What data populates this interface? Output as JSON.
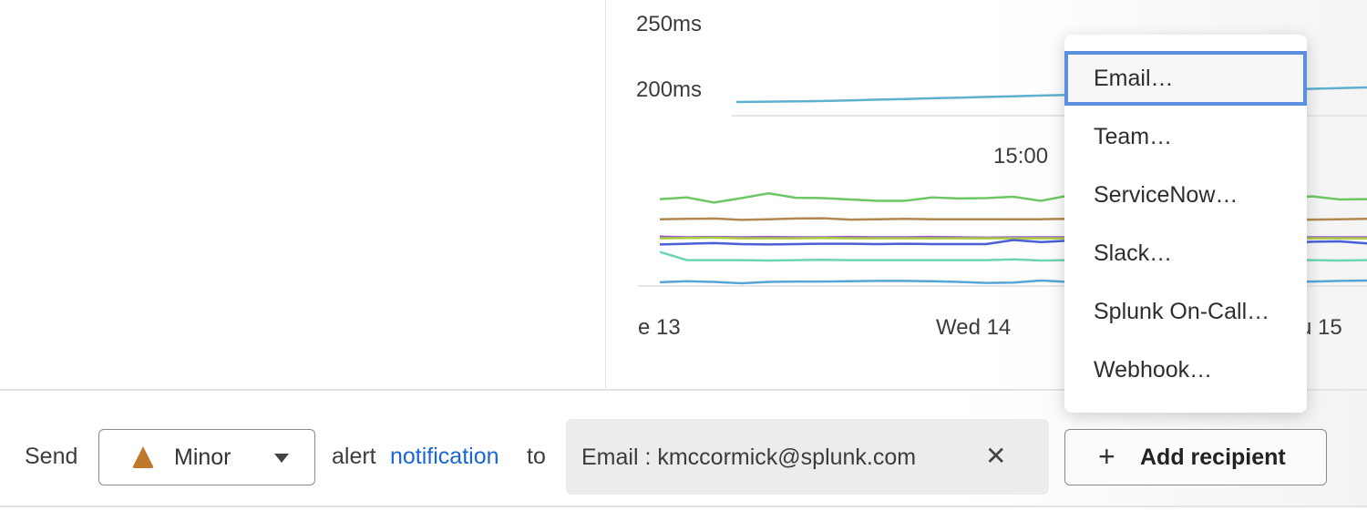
{
  "chart_data": {
    "type": "line",
    "y_tick_labels": [
      "250ms",
      "200ms"
    ],
    "x_tick_labels": [
      "e 13",
      "Wed 14",
      "u 15"
    ],
    "annotation": "15:00",
    "ylim": [
      150,
      250
    ],
    "grid": true,
    "series": [
      {
        "color": "#5eb0d0",
        "values": [
          null,
          null,
          null,
          null,
          204,
          204.2,
          204.3,
          204.5,
          204.7,
          204.9,
          205.1,
          205.3,
          205.5,
          205.7,
          205.9,
          206.1,
          206.3,
          206.5,
          206.7,
          206.9,
          207.1,
          207.3,
          207.5,
          207.7,
          207.9,
          208.1,
          208.3
        ]
      },
      {
        "color": "#6cc764",
        "values": [
          175.5,
          176,
          174.5,
          175.8,
          177.2,
          175.9,
          175.8,
          175.4,
          175,
          175,
          176,
          175.7,
          175.8,
          176.2,
          175,
          176.5,
          176,
          175,
          175.6,
          175.8,
          175.5,
          175,
          175.7,
          176.1,
          176.3,
          175.4,
          175.5
        ]
      },
      {
        "color": "#b08850",
        "values": [
          169.6,
          169.7,
          169.8,
          169.4,
          169.6,
          169.8,
          169.9,
          169.5,
          169.6,
          169.7,
          169.6,
          169.6,
          169.6,
          169.6,
          169.6,
          169.7,
          169.6,
          169.6,
          169.6,
          169.5,
          169.6,
          169.6,
          169.5,
          169.4,
          169.5,
          169.6,
          169.7
        ]
      },
      {
        "color": "#9b59d6",
        "values": [
          164.5,
          164.3,
          164.4,
          164.3,
          164.4,
          164.3,
          164.3,
          164.4,
          164.3,
          164.3,
          164.4,
          164.3,
          164.2,
          164.3,
          164.3,
          164.3,
          164.3,
          164.3,
          164.3,
          164.3,
          164.3,
          164.3,
          164.3,
          164.3,
          164.3,
          164.3,
          164.3
        ]
      },
      {
        "color": "#a9cc3c",
        "values": [
          164,
          164.1,
          164.2,
          164,
          164,
          164,
          164.1,
          164,
          164,
          164,
          164,
          164,
          164,
          164,
          164,
          164,
          164,
          164,
          164,
          164,
          164,
          164,
          164,
          164,
          164,
          164,
          164
        ]
      },
      {
        "color": "#4a5fd6",
        "values": [
          162.2,
          162.4,
          162.6,
          162.3,
          162.2,
          162.3,
          162.4,
          162.4,
          162.3,
          162.4,
          162.3,
          162.3,
          162.3,
          163.5,
          162.9,
          163.3,
          163.1,
          162.8,
          163,
          162.9,
          163,
          163.2,
          162.9,
          162.6,
          163,
          163.1,
          162.5
        ]
      },
      {
        "color": "#6fd3b8",
        "values": [
          160,
          157.6,
          157.6,
          157.6,
          157.5,
          157.6,
          157.7,
          157.6,
          157.6,
          157.6,
          157.6,
          157.6,
          157.6,
          157.8,
          157.5,
          157.6,
          157.6,
          157.6,
          157.6,
          157.6,
          157.6,
          157.5,
          157.4,
          157.6,
          157.6,
          157.5,
          157.6
        ]
      },
      {
        "color": "#55a6d8",
        "values": [
          151.1,
          151.4,
          151.2,
          150.8,
          151.2,
          151.3,
          151.3,
          151.4,
          151.5,
          151.5,
          151.4,
          151.2,
          150.9,
          151,
          151.6,
          151.2,
          151.2,
          151,
          151.3,
          151.2,
          151.1,
          151.2,
          151,
          151.2,
          151.3,
          151.5,
          151.6
        ]
      }
    ]
  },
  "bottom": {
    "send_label": "Send",
    "severity": {
      "value": "Minor",
      "icon": "triangle-severity-icon",
      "color": "#c0782a"
    },
    "alert_label": "alert",
    "notification_link": "notification",
    "to_label": "to",
    "recipient": {
      "label": "Email : kmccormick@splunk.com",
      "remove": "✕"
    },
    "add_recipient": {
      "icon": "+",
      "label": "Add recipient"
    }
  },
  "menu": {
    "items": [
      {
        "label": "Email…",
        "active": true
      },
      {
        "label": "Team…"
      },
      {
        "label": "ServiceNow…"
      },
      {
        "label": "Slack…"
      },
      {
        "label": "Splunk On-Call…"
      },
      {
        "label": "Webhook…"
      }
    ],
    "active_color": "#5b8fe0"
  },
  "link_color": "#1a66d6"
}
